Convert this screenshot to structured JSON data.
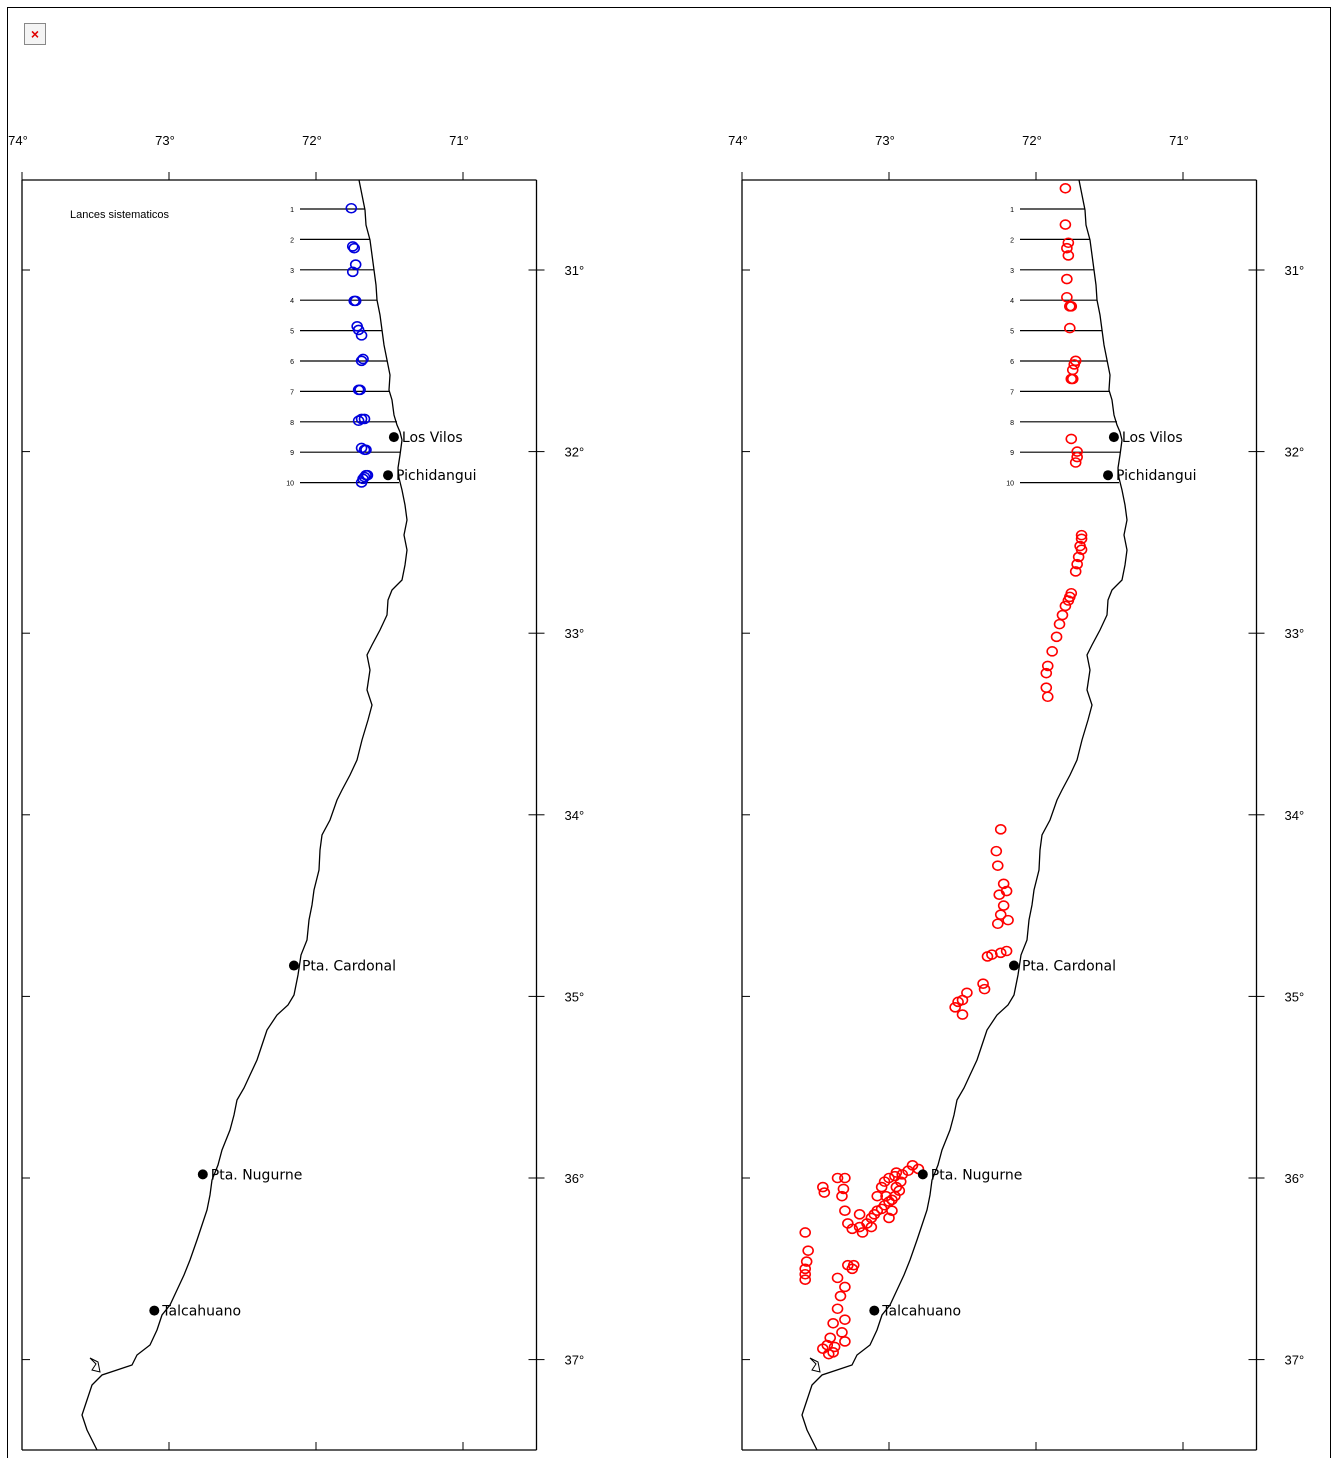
{
  "broken_image_glyph": "×",
  "chart_data": [
    {
      "type": "map",
      "legend_label": "Lances sistematicos",
      "marker_color": "#0000dd",
      "lon_ticks": [
        "74°",
        "73°",
        "72°",
        "71°"
      ],
      "lat_ticks": [
        "31°",
        "32°",
        "33°",
        "34°",
        "35°",
        "36°",
        "37°"
      ],
      "xlim": [
        -74,
        -70.5
      ],
      "ylim": [
        -37.5,
        -30.5
      ],
      "transect_labels": [
        "1",
        "2",
        "3",
        "4",
        "5",
        "6",
        "7",
        "8",
        "9",
        "10"
      ],
      "cities": [
        {
          "name": "Los Vilos",
          "lon": -71.47,
          "lat": -31.92
        },
        {
          "name": "Pichidangui",
          "lon": -71.51,
          "lat": -32.13
        },
        {
          "name": "Pta. Cardonal",
          "lon": -72.15,
          "lat": -34.83
        },
        {
          "name": "Pta. Nugurne",
          "lon": -72.77,
          "lat": -35.98
        },
        {
          "name": "Talcahuano",
          "lon": -73.1,
          "lat": -36.73
        }
      ],
      "points": [
        [
          -71.76,
          -30.66
        ],
        [
          -71.75,
          -30.87
        ],
        [
          -71.74,
          -30.88
        ],
        [
          -71.73,
          -30.97
        ],
        [
          -71.75,
          -31.01
        ],
        [
          -71.74,
          -31.17
        ],
        [
          -71.73,
          -31.17
        ],
        [
          -71.72,
          -31.31
        ],
        [
          -71.71,
          -31.33
        ],
        [
          -71.69,
          -31.36
        ],
        [
          -71.68,
          -31.49
        ],
        [
          -71.69,
          -31.5
        ],
        [
          -71.7,
          -31.66
        ],
        [
          -71.71,
          -31.66
        ],
        [
          -71.69,
          -31.82
        ],
        [
          -71.71,
          -31.83
        ],
        [
          -71.67,
          -31.82
        ],
        [
          -71.69,
          -31.98
        ],
        [
          -71.67,
          -31.99
        ],
        [
          -71.66,
          -31.99
        ],
        [
          -71.66,
          -32.13
        ],
        [
          -71.67,
          -32.14
        ],
        [
          -71.69,
          -32.17
        ],
        [
          -71.68,
          -32.15
        ],
        [
          -71.65,
          -32.13
        ]
      ]
    },
    {
      "type": "map",
      "marker_color": "#ff0000",
      "lon_ticks": [
        "74°",
        "73°",
        "72°",
        "71°"
      ],
      "lat_ticks": [
        "31°",
        "32°",
        "33°",
        "34°",
        "35°",
        "36°",
        "37°"
      ],
      "xlim": [
        -74,
        -70.5
      ],
      "ylim": [
        -37.5,
        -30.5
      ],
      "transect_labels": [
        "1",
        "2",
        "3",
        "4",
        "5",
        "6",
        "7",
        "8",
        "9",
        "10"
      ],
      "cities": [
        {
          "name": "Los Vilos",
          "lon": -71.47,
          "lat": -31.92
        },
        {
          "name": "Pichidangui",
          "lon": -71.51,
          "lat": -32.13
        },
        {
          "name": "Pta. Cardonal",
          "lon": -72.15,
          "lat": -34.83
        },
        {
          "name": "Pta. Nugurne",
          "lon": -72.77,
          "lat": -35.98
        },
        {
          "name": "Talcahuano",
          "lon": -73.1,
          "lat": -36.73
        }
      ],
      "points": [
        [
          -71.8,
          -30.55
        ],
        [
          -71.8,
          -30.75
        ],
        [
          -71.78,
          -30.85
        ],
        [
          -71.79,
          -30.88
        ],
        [
          -71.78,
          -30.92
        ],
        [
          -71.79,
          -31.05
        ],
        [
          -71.79,
          -31.15
        ],
        [
          -71.77,
          -31.2
        ],
        [
          -71.76,
          -31.2
        ],
        [
          -71.77,
          -31.32
        ],
        [
          -71.73,
          -31.5
        ],
        [
          -71.74,
          -31.52
        ],
        [
          -71.75,
          -31.55
        ],
        [
          -71.75,
          -31.6
        ],
        [
          -71.76,
          -31.6
        ],
        [
          -71.76,
          -31.93
        ],
        [
          -71.72,
          -32.0
        ],
        [
          -71.72,
          -32.03
        ],
        [
          -71.73,
          -32.06
        ],
        [
          -71.69,
          -32.46
        ],
        [
          -71.69,
          -32.48
        ],
        [
          -71.7,
          -32.52
        ],
        [
          -71.69,
          -32.54
        ],
        [
          -71.71,
          -32.58
        ],
        [
          -71.72,
          -32.62
        ],
        [
          -71.73,
          -32.66
        ],
        [
          -71.76,
          -32.78
        ],
        [
          -71.77,
          -32.8
        ],
        [
          -71.78,
          -32.82
        ],
        [
          -71.8,
          -32.85
        ],
        [
          -71.82,
          -32.9
        ],
        [
          -71.84,
          -32.95
        ],
        [
          -71.86,
          -33.02
        ],
        [
          -71.89,
          -33.1
        ],
        [
          -71.92,
          -33.18
        ],
        [
          -71.93,
          -33.22
        ],
        [
          -71.93,
          -33.3
        ],
        [
          -71.92,
          -33.35
        ],
        [
          -72.24,
          -34.08
        ],
        [
          -72.27,
          -34.2
        ],
        [
          -72.26,
          -34.28
        ],
        [
          -72.22,
          -34.38
        ],
        [
          -72.2,
          -34.42
        ],
        [
          -72.25,
          -34.44
        ],
        [
          -72.22,
          -34.5
        ],
        [
          -72.24,
          -34.55
        ],
        [
          -72.19,
          -34.58
        ],
        [
          -72.26,
          -34.6
        ],
        [
          -72.3,
          -34.77
        ],
        [
          -72.33,
          -34.78
        ],
        [
          -72.2,
          -34.75
        ],
        [
          -72.24,
          -34.76
        ],
        [
          -72.36,
          -34.93
        ],
        [
          -72.35,
          -34.96
        ],
        [
          -72.47,
          -34.98
        ],
        [
          -72.5,
          -35.02
        ],
        [
          -72.53,
          -35.03
        ],
        [
          -72.55,
          -35.06
        ],
        [
          -72.5,
          -35.1
        ],
        [
          -72.8,
          -35.95
        ],
        [
          -72.84,
          -35.93
        ],
        [
          -72.87,
          -35.96
        ],
        [
          -72.91,
          -35.98
        ],
        [
          -72.95,
          -35.97
        ],
        [
          -72.92,
          -36.02
        ],
        [
          -72.95,
          -36.05
        ],
        [
          -72.93,
          -36.07
        ],
        [
          -72.96,
          -36.1
        ],
        [
          -72.98,
          -36.12
        ],
        [
          -73.0,
          -36.13
        ],
        [
          -73.03,
          -36.15
        ],
        [
          -73.05,
          -36.17
        ],
        [
          -73.08,
          -36.18
        ],
        [
          -73.1,
          -36.2
        ],
        [
          -72.98,
          -36.18
        ],
        [
          -73.0,
          -36.22
        ],
        [
          -73.12,
          -36.22
        ],
        [
          -73.15,
          -36.25
        ],
        [
          -73.12,
          -36.27
        ],
        [
          -73.2,
          -36.27
        ],
        [
          -73.18,
          -36.3
        ],
        [
          -73.25,
          -36.28
        ],
        [
          -73.28,
          -36.25
        ],
        [
          -73.2,
          -36.2
        ],
        [
          -73.3,
          -36.18
        ],
        [
          -73.32,
          -36.1
        ],
        [
          -73.31,
          -36.06
        ],
        [
          -73.35,
          -36.0
        ],
        [
          -73.45,
          -36.05
        ],
        [
          -73.44,
          -36.08
        ],
        [
          -73.3,
          -36.0
        ],
        [
          -73.0,
          -36.0
        ],
        [
          -72.96,
          -35.99
        ],
        [
          -73.03,
          -36.02
        ],
        [
          -73.05,
          -36.05
        ],
        [
          -73.08,
          -36.1
        ],
        [
          -73.02,
          -36.1
        ],
        [
          -73.57,
          -36.3
        ],
        [
          -73.55,
          -36.4
        ],
        [
          -73.56,
          -36.46
        ],
        [
          -73.57,
          -36.5
        ],
        [
          -73.57,
          -36.53
        ],
        [
          -73.57,
          -36.56
        ],
        [
          -73.35,
          -36.55
        ],
        [
          -73.3,
          -36.6
        ],
        [
          -73.25,
          -36.5
        ],
        [
          -73.24,
          -36.48
        ],
        [
          -73.28,
          -36.48
        ],
        [
          -73.33,
          -36.65
        ],
        [
          -73.35,
          -36.72
        ],
        [
          -73.38,
          -36.8
        ],
        [
          -73.3,
          -36.78
        ],
        [
          -73.4,
          -36.88
        ],
        [
          -73.42,
          -36.92
        ],
        [
          -73.45,
          -36.94
        ],
        [
          -73.37,
          -36.93
        ],
        [
          -73.38,
          -36.96
        ],
        [
          -73.41,
          -36.97
        ],
        [
          -73.3,
          -36.9
        ],
        [
          -73.32,
          -36.85
        ]
      ]
    }
  ]
}
